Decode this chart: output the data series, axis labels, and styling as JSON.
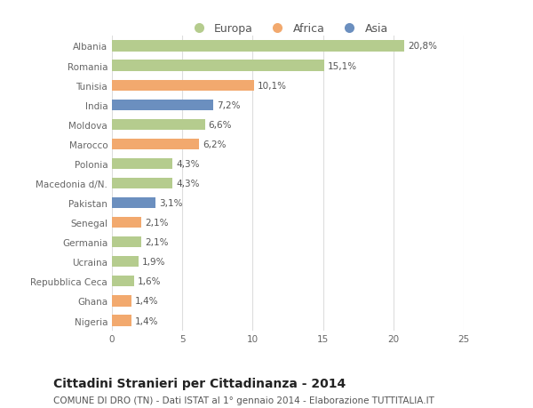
{
  "categories": [
    "Albania",
    "Romania",
    "Tunisia",
    "India",
    "Moldova",
    "Marocco",
    "Polonia",
    "Macedonia d/N.",
    "Pakistan",
    "Senegal",
    "Germania",
    "Ucraina",
    "Repubblica Ceca",
    "Ghana",
    "Nigeria"
  ],
  "values": [
    20.8,
    15.1,
    10.1,
    7.2,
    6.6,
    6.2,
    4.3,
    4.3,
    3.1,
    2.1,
    2.1,
    1.9,
    1.6,
    1.4,
    1.4
  ],
  "labels": [
    "20,8%",
    "15,1%",
    "10,1%",
    "7,2%",
    "6,6%",
    "6,2%",
    "4,3%",
    "4,3%",
    "3,1%",
    "2,1%",
    "2,1%",
    "1,9%",
    "1,6%",
    "1,4%",
    "1,4%"
  ],
  "continents": [
    "Europa",
    "Europa",
    "Africa",
    "Asia",
    "Europa",
    "Africa",
    "Europa",
    "Europa",
    "Asia",
    "Africa",
    "Europa",
    "Europa",
    "Europa",
    "Africa",
    "Africa"
  ],
  "colors": {
    "Europa": "#b5cc8e",
    "Africa": "#f2a96e",
    "Asia": "#6b8fbf"
  },
  "xlim": [
    0,
    25
  ],
  "xticks": [
    0,
    5,
    10,
    15,
    20,
    25
  ],
  "title": "Cittadini Stranieri per Cittadinanza - 2014",
  "subtitle": "COMUNE DI DRO (TN) - Dati ISTAT al 1° gennaio 2014 - Elaborazione TUTTITALIA.IT",
  "background_color": "#ffffff",
  "plot_background_color": "#ffffff",
  "grid_color": "#dddddd",
  "bar_height": 0.55,
  "label_fontsize": 7.5,
  "title_fontsize": 10,
  "subtitle_fontsize": 7.5,
  "tick_fontsize": 7.5,
  "ytick_fontsize": 7.5
}
